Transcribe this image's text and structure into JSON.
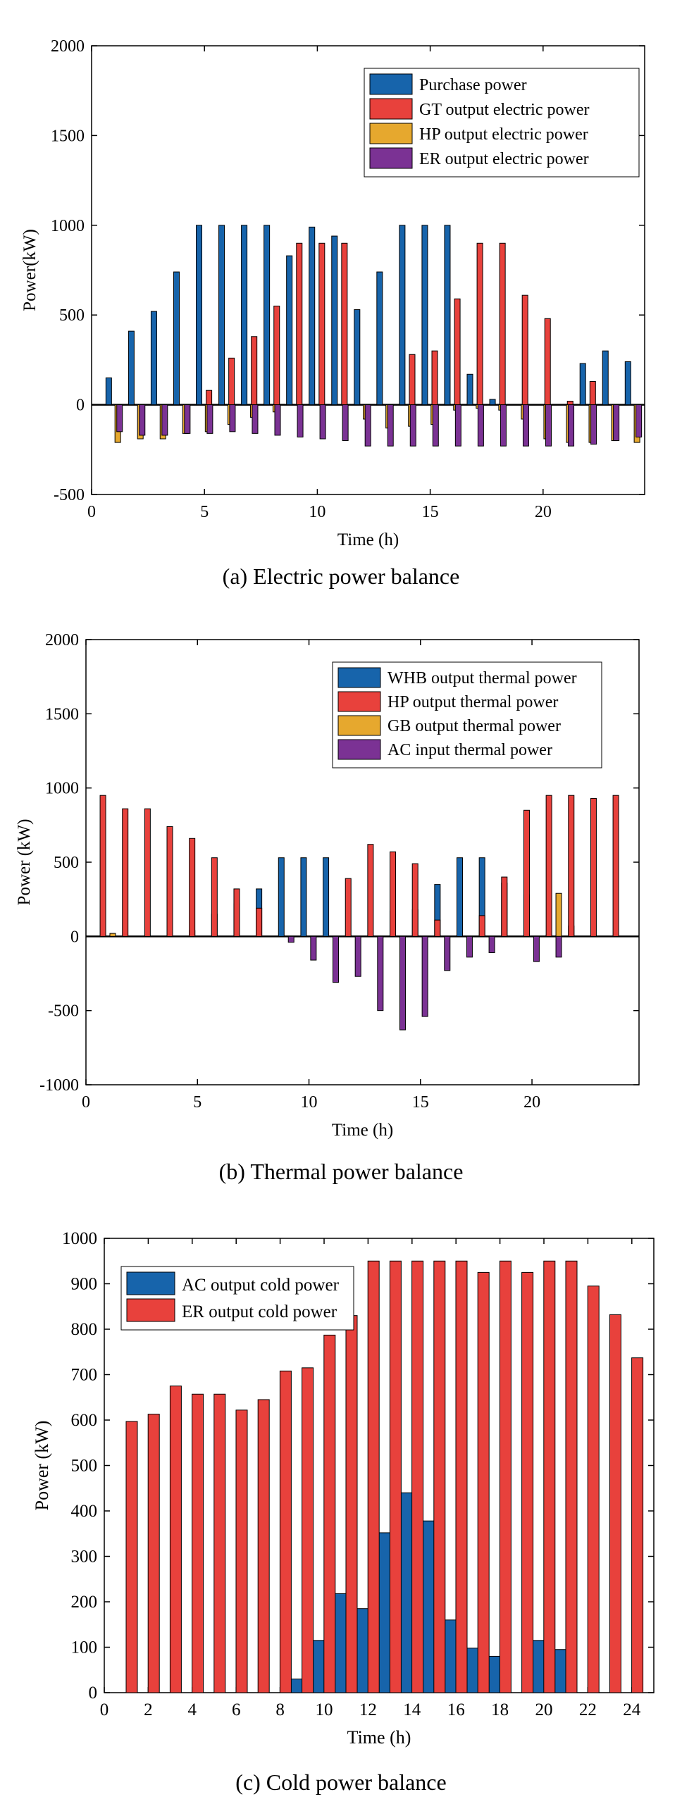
{
  "colors": {
    "blue": "#1764ab",
    "red": "#e8413c",
    "yellow": "#e6a82e",
    "purple": "#7b3294"
  },
  "captions": {
    "a": "(a) Electric power balance",
    "b": "(b) Thermal power balance",
    "c": "(c) Cold power balance"
  },
  "chart_data": [
    {
      "type": "bar",
      "xlabel": "Time (h)",
      "ylabel": "Power(kW)",
      "xlim": [
        0,
        24.5
      ],
      "ylim": [
        -500,
        2000
      ],
      "xticks": [
        0,
        5,
        10,
        15,
        20
      ],
      "yticks": [
        -500,
        0,
        500,
        1000,
        1500,
        2000
      ],
      "legend_position": "top-right",
      "x": [
        1,
        2,
        3,
        4,
        5,
        6,
        7,
        8,
        9,
        10,
        11,
        12,
        13,
        14,
        15,
        16,
        17,
        18,
        19,
        20,
        21,
        22,
        23,
        24
      ],
      "series": [
        {
          "name": "Purchase power",
          "color": "blue",
          "values": [
            150,
            410,
            520,
            740,
            1000,
            1000,
            1000,
            1000,
            830,
            990,
            940,
            530,
            740,
            1000,
            1000,
            1000,
            170,
            30,
            0,
            0,
            0,
            230,
            300,
            240
          ]
        },
        {
          "name": "GT output electric power",
          "color": "red",
          "values": [
            0,
            0,
            0,
            0,
            80,
            260,
            380,
            550,
            900,
            900,
            900,
            0,
            0,
            280,
            300,
            590,
            900,
            900,
            610,
            480,
            20,
            130,
            0,
            0
          ]
        },
        {
          "name": "HP output electric power",
          "color": "yellow",
          "values": [
            -210,
            -190,
            -190,
            -160,
            -150,
            -110,
            -70,
            -40,
            0,
            0,
            0,
            -80,
            -130,
            -120,
            -110,
            -30,
            -20,
            -30,
            -80,
            -190,
            -210,
            -210,
            -200,
            -210
          ]
        },
        {
          "name": "ER output electric power",
          "color": "purple",
          "values": [
            -150,
            -170,
            -170,
            -160,
            -160,
            -150,
            -160,
            -170,
            -180,
            -190,
            -200,
            -230,
            -230,
            -230,
            -230,
            -230,
            -230,
            -230,
            -230,
            -230,
            -230,
            -220,
            -200,
            -180
          ]
        }
      ]
    },
    {
      "type": "bar",
      "xlabel": "Time (h)",
      "ylabel": "Power (kW)",
      "xlim": [
        0,
        24.8
      ],
      "ylim": [
        -1000,
        2000
      ],
      "xticks": [
        0,
        5,
        10,
        15,
        20
      ],
      "yticks": [
        -1000,
        -500,
        0,
        500,
        1000,
        1500,
        2000
      ],
      "legend_position": "top-right",
      "x": [
        1,
        2,
        3,
        4,
        5,
        6,
        7,
        8,
        9,
        10,
        11,
        12,
        13,
        14,
        15,
        16,
        17,
        18,
        19,
        20,
        21,
        22,
        23,
        24
      ],
      "series": [
        {
          "name": "WHB output thermal power",
          "color": "blue",
          "values": [
            0,
            0,
            0,
            0,
            40,
            150,
            220,
            320,
            530,
            530,
            530,
            0,
            0,
            170,
            180,
            350,
            530,
            530,
            360,
            280,
            10,
            70,
            0,
            0
          ]
        },
        {
          "name": "HP output thermal power",
          "color": "red",
          "values": [
            950,
            860,
            860,
            740,
            660,
            530,
            320,
            190,
            0,
            0,
            0,
            390,
            620,
            570,
            490,
            110,
            0,
            140,
            400,
            850,
            950,
            950,
            930,
            950
          ]
        },
        {
          "name": "GB output thermal power",
          "color": "yellow",
          "values": [
            20,
            0,
            0,
            0,
            0,
            0,
            0,
            0,
            0,
            0,
            0,
            0,
            0,
            0,
            0,
            0,
            0,
            0,
            0,
            0,
            290,
            0,
            0,
            0
          ]
        },
        {
          "name": "AC input thermal power",
          "color": "purple",
          "values": [
            0,
            0,
            0,
            0,
            0,
            0,
            0,
            0,
            -40,
            -160,
            -310,
            -270,
            -500,
            -630,
            -540,
            -230,
            -140,
            -110,
            0,
            -170,
            -140,
            0,
            0,
            0
          ]
        }
      ]
    },
    {
      "type": "bar",
      "xlabel": "Time (h)",
      "ylabel": "Power (kW)",
      "xlim": [
        0,
        25
      ],
      "ylim": [
        0,
        1000
      ],
      "xticks": [
        0,
        2,
        4,
        6,
        8,
        10,
        12,
        14,
        16,
        18,
        20,
        22,
        24
      ],
      "yticks": [
        0,
        100,
        200,
        300,
        400,
        500,
        600,
        700,
        800,
        900,
        1000
      ],
      "legend_position": "top-left",
      "x": [
        1,
        2,
        3,
        4,
        5,
        6,
        7,
        8,
        9,
        10,
        11,
        12,
        13,
        14,
        15,
        16,
        17,
        18,
        19,
        20,
        21,
        22,
        23,
        24
      ],
      "series": [
        {
          "name": "AC output cold power",
          "color": "blue",
          "values": [
            0,
            0,
            0,
            0,
            0,
            0,
            0,
            0,
            30,
            115,
            218,
            185,
            352,
            440,
            378,
            160,
            98,
            80,
            0,
            115,
            95,
            0,
            0,
            0
          ]
        },
        {
          "name": "ER output cold power",
          "color": "red",
          "values": [
            597,
            613,
            675,
            657,
            657,
            622,
            645,
            708,
            715,
            787,
            830,
            950,
            950,
            950,
            950,
            950,
            925,
            950,
            925,
            950,
            950,
            895,
            832,
            737
          ]
        }
      ]
    }
  ]
}
